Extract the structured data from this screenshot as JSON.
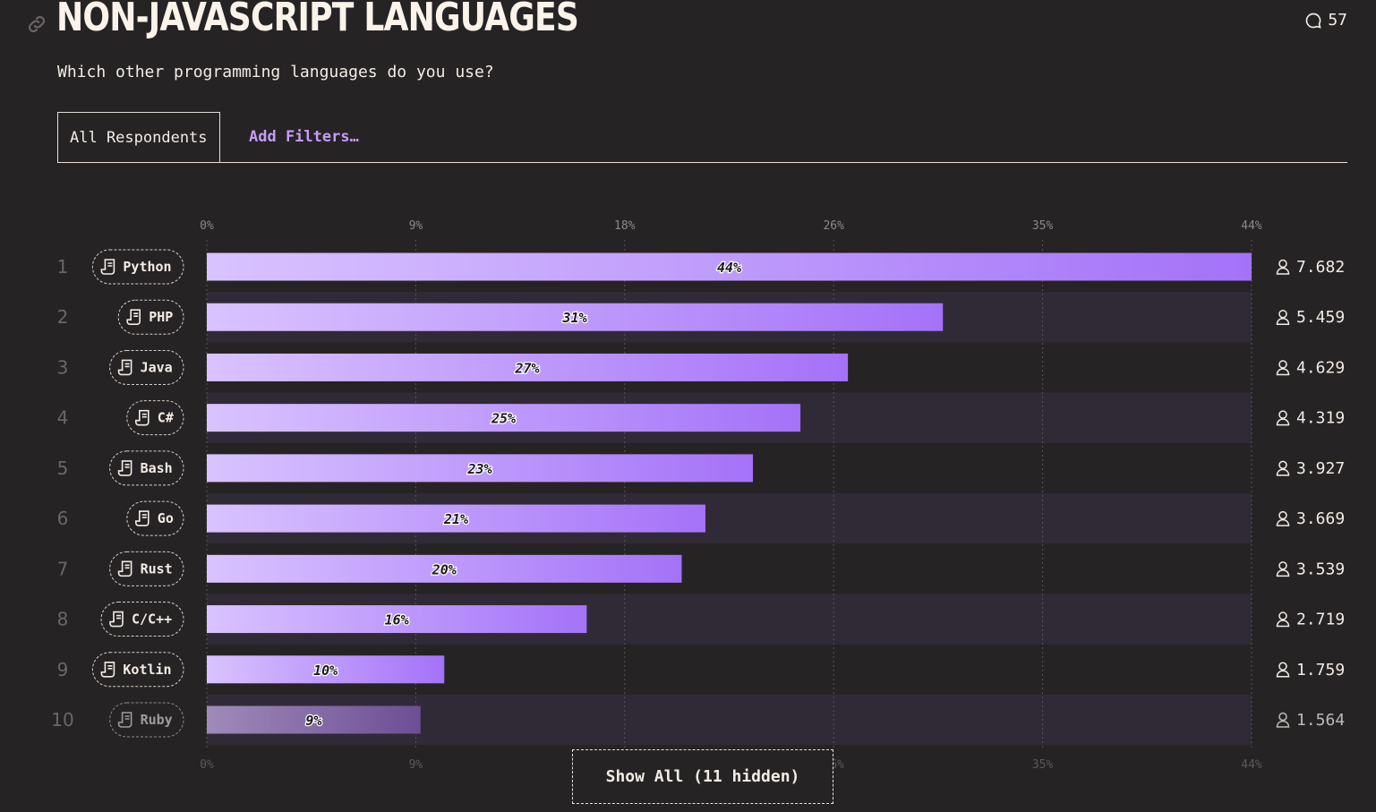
{
  "header": {
    "title": "NON-JAVASCRIPT LANGUAGES",
    "question": "Which other programming languages do you use?",
    "comment_count": "57"
  },
  "tabs": {
    "all_label": "All Respondents",
    "filters_label": "Add Filters…"
  },
  "footer": {
    "show_all_label": "Show All (11 hidden)"
  },
  "colors": {
    "background": "#262325",
    "bar_start": "#d9c3ff",
    "bar_end": "#a472f8",
    "accent": "#c69cf5"
  },
  "icons": {
    "link": "link-icon",
    "comment": "comment-icon",
    "item": "scroll-icon",
    "user": "user-icon"
  },
  "chart_data": {
    "type": "bar",
    "orientation": "horizontal",
    "x_ticks": [
      "0%",
      "9%",
      "18%",
      "26%",
      "35%",
      "44%"
    ],
    "xlim": [
      0,
      44
    ],
    "grid": true,
    "rows": [
      {
        "rank": "1",
        "label": "Python",
        "value": 44,
        "value_label": "44%",
        "count": "7.682"
      },
      {
        "rank": "2",
        "label": "PHP",
        "value": 31,
        "value_label": "31%",
        "count": "5.459"
      },
      {
        "rank": "3",
        "label": "Java",
        "value": 27,
        "value_label": "27%",
        "count": "4.629"
      },
      {
        "rank": "4",
        "label": "C#",
        "value": 25,
        "value_label": "25%",
        "count": "4.319"
      },
      {
        "rank": "5",
        "label": "Bash",
        "value": 23,
        "value_label": "23%",
        "count": "3.927"
      },
      {
        "rank": "6",
        "label": "Go",
        "value": 21,
        "value_label": "21%",
        "count": "3.669"
      },
      {
        "rank": "7",
        "label": "Rust",
        "value": 20,
        "value_label": "20%",
        "count": "3.539"
      },
      {
        "rank": "8",
        "label": "C/C++",
        "value": 16,
        "value_label": "16%",
        "count": "2.719"
      },
      {
        "rank": "9",
        "label": "Kotlin",
        "value": 10,
        "value_label": "10%",
        "count": "1.759"
      },
      {
        "rank": "10",
        "label": "Ruby",
        "value": 9,
        "value_label": "9%",
        "count": "1.564"
      }
    ]
  }
}
